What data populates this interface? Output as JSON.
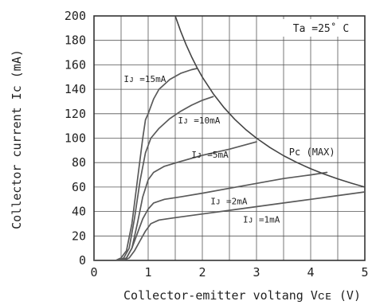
{
  "chart_data": {
    "type": "line",
    "title": "",
    "xlabel": "Collector-emitter voltang Vᴄᴇ (V)",
    "ylabel": "Collector current Ic (mA)",
    "xlim": [
      0,
      5
    ],
    "ylim": [
      0,
      200
    ],
    "x_ticks": [
      "0",
      "1",
      "2",
      "3",
      "4",
      "5"
    ],
    "y_ticks": [
      "0",
      "20",
      "40",
      "60",
      "80",
      "100",
      "120",
      "140",
      "160",
      "180",
      "200"
    ],
    "grid": true,
    "condition": "Ta =25˚ C",
    "series": [
      {
        "name": "Iᴊ =15mA",
        "points": [
          [
            0,
            0
          ],
          [
            0.4,
            0
          ],
          [
            0.5,
            2
          ],
          [
            0.6,
            8
          ],
          [
            0.7,
            30
          ],
          [
            0.8,
            65
          ],
          [
            0.9,
            100
          ],
          [
            0.95,
            115
          ],
          [
            1.0,
            120
          ],
          [
            1.1,
            132
          ],
          [
            1.2,
            140
          ],
          [
            1.4,
            148
          ],
          [
            1.6,
            153
          ],
          [
            1.8,
            156
          ],
          [
            1.9,
            157
          ]
        ]
      },
      {
        "name": "Iᴊ =10mA",
        "points": [
          [
            0,
            0
          ],
          [
            0.45,
            0
          ],
          [
            0.55,
            2
          ],
          [
            0.65,
            10
          ],
          [
            0.75,
            35
          ],
          [
            0.85,
            65
          ],
          [
            0.95,
            88
          ],
          [
            1.05,
            100
          ],
          [
            1.2,
            108
          ],
          [
            1.4,
            116
          ],
          [
            1.6,
            122
          ],
          [
            1.8,
            127
          ],
          [
            2.0,
            131
          ],
          [
            2.2,
            134
          ]
        ]
      },
      {
        "name": "Iᴊ =5mA",
        "points": [
          [
            0,
            0
          ],
          [
            0.5,
            0
          ],
          [
            0.6,
            2
          ],
          [
            0.7,
            10
          ],
          [
            0.8,
            30
          ],
          [
            0.9,
            52
          ],
          [
            1.0,
            66
          ],
          [
            1.1,
            72
          ],
          [
            1.3,
            77
          ],
          [
            1.6,
            81
          ],
          [
            2.0,
            86
          ],
          [
            2.5,
            91
          ],
          [
            3.0,
            97
          ]
        ]
      },
      {
        "name": "Iᴊ =2mA",
        "points": [
          [
            0,
            0
          ],
          [
            0.5,
            0
          ],
          [
            0.6,
            2
          ],
          [
            0.7,
            10
          ],
          [
            0.8,
            22
          ],
          [
            0.9,
            34
          ],
          [
            1.0,
            42
          ],
          [
            1.1,
            47
          ],
          [
            1.3,
            50
          ],
          [
            1.6,
            52
          ],
          [
            2.0,
            55
          ],
          [
            2.5,
            59
          ],
          [
            3.0,
            63
          ],
          [
            3.5,
            67
          ],
          [
            4.0,
            70
          ],
          [
            4.3,
            72
          ]
        ]
      },
      {
        "name": "Iᴊ =1mA",
        "points": [
          [
            0,
            0
          ],
          [
            0.55,
            0
          ],
          [
            0.65,
            2
          ],
          [
            0.75,
            8
          ],
          [
            0.85,
            16
          ],
          [
            0.95,
            24
          ],
          [
            1.05,
            30
          ],
          [
            1.2,
            33
          ],
          [
            1.5,
            35
          ],
          [
            2.0,
            38
          ],
          [
            2.5,
            41
          ],
          [
            3.0,
            44
          ],
          [
            3.5,
            47
          ],
          [
            4.0,
            50
          ],
          [
            4.5,
            53
          ],
          [
            5.0,
            56
          ]
        ]
      },
      {
        "name": "Pc (MAX)",
        "points": [
          [
            1.5,
            200
          ],
          [
            1.6,
            187.5
          ],
          [
            1.7,
            176.5
          ],
          [
            1.8,
            166.7
          ],
          [
            1.9,
            157.9
          ],
          [
            2.0,
            150
          ],
          [
            2.2,
            136.4
          ],
          [
            2.4,
            125
          ],
          [
            2.6,
            115.4
          ],
          [
            2.8,
            107.1
          ],
          [
            3.0,
            100
          ],
          [
            3.25,
            92.3
          ],
          [
            3.5,
            85.7
          ],
          [
            3.75,
            80
          ],
          [
            4.0,
            75
          ],
          [
            4.25,
            70.6
          ],
          [
            4.5,
            66.7
          ],
          [
            4.75,
            63.2
          ],
          [
            5.0,
            60
          ]
        ]
      }
    ],
    "curve_labels": [
      {
        "text": "Iᴊ =15mA",
        "x": 0.55,
        "y": 146
      },
      {
        "text": "Iᴊ =10mA",
        "x": 1.55,
        "y": 112
      },
      {
        "text": "Iᴊ =5mA",
        "x": 1.8,
        "y": 84
      },
      {
        "text": "Iᴊ =2mA",
        "x": 2.15,
        "y": 46
      },
      {
        "text": "Iᴊ =1mA",
        "x": 2.75,
        "y": 31
      },
      {
        "text": "Pc (MAX)",
        "x": 3.6,
        "y": 86
      }
    ]
  }
}
